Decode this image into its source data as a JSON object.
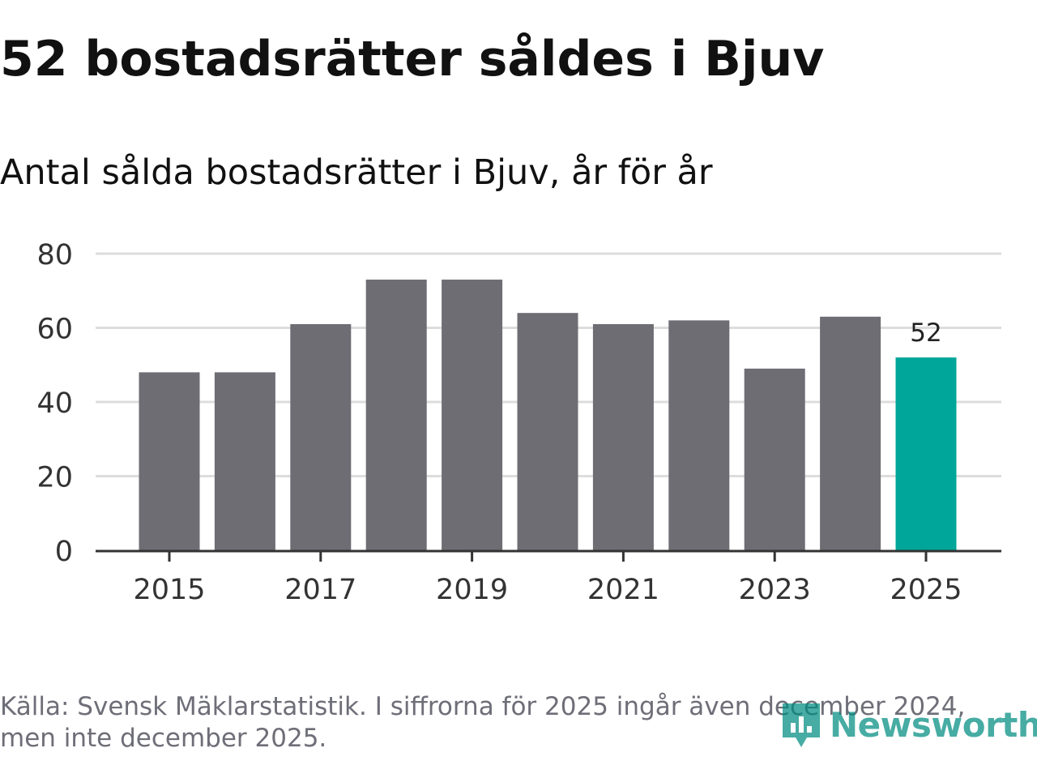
{
  "header": {
    "title": "52 bostadsrätter såldes i Bjuv",
    "subtitle": "Antal sålda bostadsrätter i Bjuv, år för år"
  },
  "footer": {
    "source_note": "Källa: Svensk Mäklarstatistik. I siffrorna för 2025 ingår även december 2024, men inte december 2025.",
    "brand": "Newsworthy"
  },
  "colors": {
    "bar_default": "#6e6d74",
    "bar_highlight": "#00a699",
    "gridline": "#dddddd",
    "axis": "#333333",
    "text": "#333333",
    "brand": "#00a699"
  },
  "chart_data": {
    "type": "bar",
    "title": "52 bostadsrätter såldes i Bjuv",
    "subtitle": "Antal sålda bostadsrätter i Bjuv, år för år",
    "xlabel": "",
    "ylabel": "",
    "categories": [
      "2015",
      "2016",
      "2017",
      "2018",
      "2019",
      "2020",
      "2021",
      "2022",
      "2023",
      "2024",
      "2025"
    ],
    "values": [
      48,
      48,
      61,
      73,
      73,
      64,
      61,
      62,
      49,
      63,
      52
    ],
    "x_tick_labels": [
      "2015",
      "2017",
      "2019",
      "2021",
      "2023",
      "2025"
    ],
    "y_ticks": [
      0,
      20,
      40,
      60,
      80
    ],
    "ylim": [
      0,
      80
    ],
    "grid": true,
    "highlight_index": 10,
    "data_labels": [
      {
        "index": 10,
        "text": "52"
      }
    ]
  }
}
